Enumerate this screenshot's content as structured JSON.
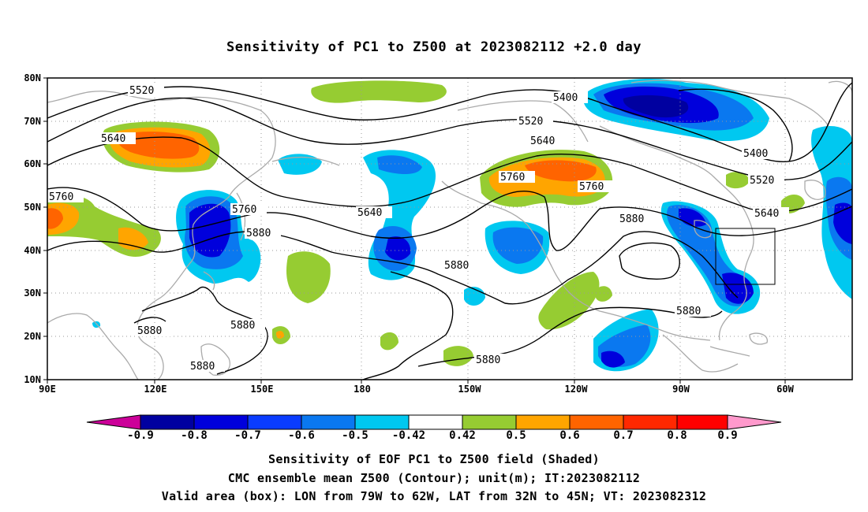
{
  "title": "Sensitivity of PC1 to Z500 at 2023082112 +2.0 day",
  "map": {
    "lat_labels": [
      "80N",
      "70N",
      "60N",
      "50N",
      "40N",
      "30N",
      "20N",
      "10N"
    ],
    "lon_labels": [
      "90E",
      "120E",
      "150E",
      "180",
      "150W",
      "120W",
      "90W",
      "60W"
    ],
    "lat_range": [
      10,
      80
    ],
    "lon_range": [
      90,
      310
    ],
    "contour_labels": [
      {
        "id": "c5520a",
        "text": "5520"
      },
      {
        "id": "c5640a",
        "text": "5640"
      },
      {
        "id": "c5760a",
        "text": "5760"
      },
      {
        "id": "c5760b",
        "text": "5760"
      },
      {
        "id": "c5880a",
        "text": "5880"
      },
      {
        "id": "c5880b",
        "text": "5880"
      },
      {
        "id": "c5880c",
        "text": "5880"
      },
      {
        "id": "c5880d",
        "text": "5880"
      },
      {
        "id": "c5640b",
        "text": "5640"
      },
      {
        "id": "c5880e",
        "text": "5880"
      },
      {
        "id": "c5880f",
        "text": "5880"
      },
      {
        "id": "c5400a",
        "text": "5400"
      },
      {
        "id": "c5520b",
        "text": "5520"
      },
      {
        "id": "c5640c",
        "text": "5640"
      },
      {
        "id": "c5760c",
        "text": "5760"
      },
      {
        "id": "c5760d",
        "text": "5760"
      },
      {
        "id": "c5880g",
        "text": "5880"
      },
      {
        "id": "c5880h",
        "text": "5880"
      },
      {
        "id": "c5400b",
        "text": "5400"
      },
      {
        "id": "c5520c",
        "text": "5520"
      },
      {
        "id": "c5640d",
        "text": "5640"
      }
    ],
    "valid_box": {
      "lon_from": "79W",
      "lon_to": "62W",
      "lat_from": "32N",
      "lat_to": "45N"
    }
  },
  "colorbar": {
    "labels": [
      "-0.9",
      "-0.8",
      "-0.7",
      "-0.6",
      "-0.5",
      "-0.42",
      "0.42",
      "0.5",
      "0.6",
      "0.7",
      "0.8",
      "0.9"
    ],
    "colors": [
      "#cc0099",
      "#0000a0",
      "#0000dc",
      "#0a3cff",
      "#0a78f0",
      "#00c8f0",
      "#ffffff",
      "#96cc32",
      "#ffa500",
      "#ff6400",
      "#ff2800",
      "#ff0000",
      "#ff99cc"
    ]
  },
  "footer": {
    "line1": "Sensitivity of EOF PC1 to Z500 field (Shaded)",
    "line2": "CMC ensemble mean Z500 (Contour); unit(m); IT:2023082112",
    "line3": "Valid area (box): LON from 79W to 62W, LAT from 32N to 45N; VT: 2023082312"
  }
}
